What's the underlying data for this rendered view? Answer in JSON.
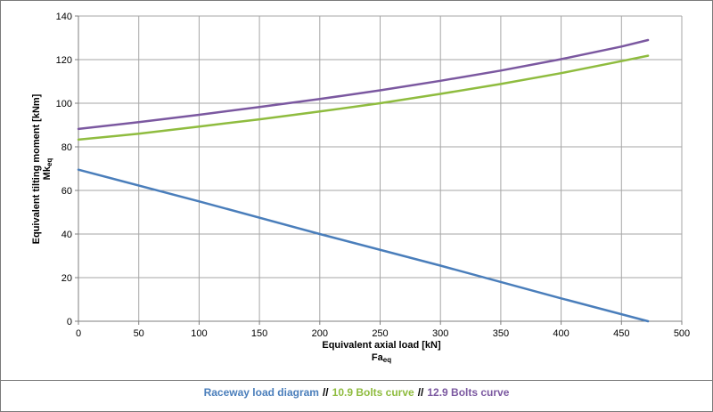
{
  "chart_data": {
    "type": "line",
    "xlabel": "Equivalent axial load [kN]",
    "xlabel_sub": "Fa",
    "xlabel_sub_index": "eq",
    "ylabel": "Equivalent tilting moment [kNm]",
    "ylabel_sub": "Mk",
    "ylabel_sub_index": "eq",
    "xlim": [
      0,
      500
    ],
    "ylim": [
      0,
      140
    ],
    "xticks": [
      0,
      50,
      100,
      150,
      200,
      250,
      300,
      350,
      400,
      450,
      500
    ],
    "yticks": [
      0,
      20,
      40,
      60,
      80,
      100,
      120,
      140
    ],
    "grid": true,
    "legend_position": "bottom",
    "separator": "//",
    "series": [
      {
        "name": "Raceway load diagram",
        "color": "#4a7ebb",
        "x": [
          0,
          100,
          200,
          300,
          400,
          472
        ],
        "y": [
          69.5,
          55,
          40,
          25.5,
          10.5,
          0
        ]
      },
      {
        "name": "10.9 Bolts curve",
        "color": "#8fbc3f",
        "x": [
          0,
          50,
          100,
          150,
          200,
          250,
          300,
          350,
          400,
          450,
          472
        ],
        "y": [
          83.3,
          86,
          89.3,
          92.6,
          96.2,
          100,
          104.3,
          108.8,
          113.8,
          119.3,
          121.8
        ]
      },
      {
        "name": "12.9 Bolts curve",
        "color": "#7b58a0",
        "x": [
          0,
          50,
          100,
          150,
          200,
          250,
          300,
          350,
          400,
          450,
          472
        ],
        "y": [
          88.2,
          91.3,
          94.7,
          98.3,
          101.9,
          105.9,
          110.3,
          115,
          120.2,
          126,
          129
        ]
      }
    ]
  }
}
